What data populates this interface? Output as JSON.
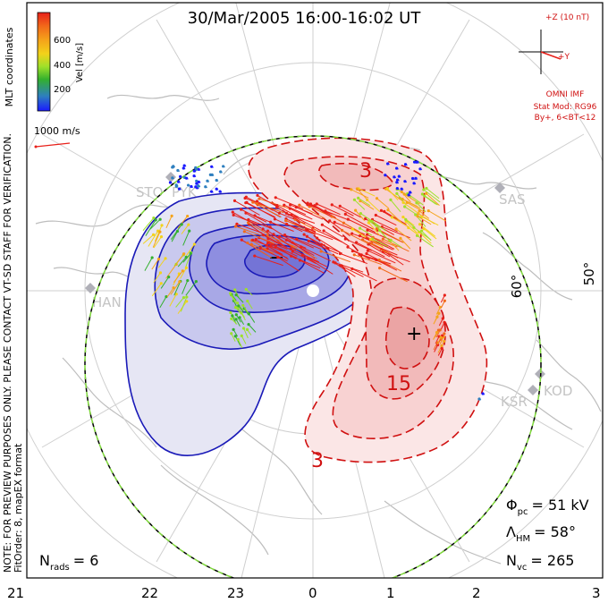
{
  "title": "30/Mar/2005 16:00-16:02 UT",
  "side_note": {
    "line1": "NOTE: FOR PREVIEW PURPOSES ONLY. PLEASE CONTACT VT-SD STAFF FOR VERIFICATION.",
    "line2": "FitOrder: 8, mapEX format"
  },
  "coordinates_label": "MLT coordinates",
  "colorbar": {
    "label": "Vel [m/s]",
    "ticks": [
      "200",
      "400",
      "600"
    ],
    "colors": [
      "#1a1aff",
      "#2e7fbf",
      "#33b02e",
      "#9ee02a",
      "#f2d21a",
      "#f5a31a",
      "#f26a1a",
      "#e8201a"
    ]
  },
  "scale_vector": "1000 m/s",
  "imf": {
    "scale": "+Z (10 nT)",
    "y_axis": "+Y",
    "label": "OMNI IMF",
    "model1": "Stat Mod: RG96",
    "model2": "By+, 6<BT<12"
  },
  "stats": {
    "phi_symbol": "Φ",
    "phi_sub": "pc",
    "phi_value": "= 51 kV",
    "lambda_symbol": "Λ",
    "lambda_sub": "HM",
    "lambda_value": "= 58°",
    "nvc_symbol": "N",
    "nvc_sub": "vc",
    "nvc_value": "= 265",
    "nrads_symbol": "N",
    "nrads_sub": "rads",
    "nrads_value": "= 6"
  },
  "mlt_labels": [
    "21",
    "22",
    "23",
    "0",
    "1",
    "2",
    "3"
  ],
  "latitude_labels": [
    "60°",
    "50°"
  ],
  "contour_labels": {
    "pos_outer": "3",
    "pos_mid": "15",
    "pos_low": "3"
  },
  "potential_markers": {
    "minimum": "−",
    "maximum": "+"
  },
  "stations": [
    "SAS",
    "KOD",
    "KSR",
    "HAN",
    "STO",
    "PYK"
  ],
  "colors": {
    "negative_cell": "#1010b0",
    "positive_cell": "#d01010",
    "heppner_maynard": "#7ed83a",
    "grid": "#c8c8c8",
    "coast": "#b4b4b4"
  }
}
